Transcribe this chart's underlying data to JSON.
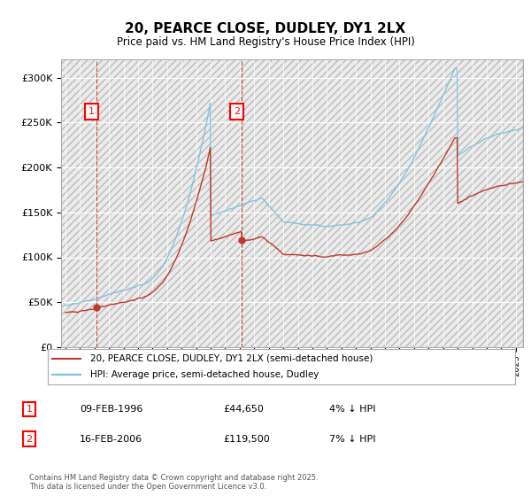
{
  "title": "20, PEARCE CLOSE, DUDLEY, DY1 2LX",
  "subtitle": "Price paid vs. HM Land Registry's House Price Index (HPI)",
  "ylabel_ticks": [
    "£0",
    "£50K",
    "£100K",
    "£150K",
    "£200K",
    "£250K",
    "£300K"
  ],
  "ytick_values": [
    0,
    50000,
    100000,
    150000,
    200000,
    250000,
    300000
  ],
  "ylim": [
    0,
    320000
  ],
  "xlim_start": 1993.7,
  "xlim_end": 2025.5,
  "legend_line1": "20, PEARCE CLOSE, DUDLEY, DY1 2LX (semi-detached house)",
  "legend_line2": "HPI: Average price, semi-detached house, Dudley",
  "label1_date": "09-FEB-1996",
  "label1_price": "£44,650",
  "label1_hpi": "4% ↓ HPI",
  "label2_date": "16-FEB-2006",
  "label2_price": "£119,500",
  "label2_hpi": "7% ↓ HPI",
  "copyright": "Contains HM Land Registry data © Crown copyright and database right 2025.\nThis data is licensed under the Open Government Licence v3.0.",
  "sale1_x": 1996.11,
  "sale1_y": 44650,
  "sale2_x": 2006.12,
  "sale2_y": 119500,
  "hpi_color": "#7bbfde",
  "price_color": "#c0392b",
  "grid_color": "#cccccc",
  "hatch_color": "#e0e0e0"
}
